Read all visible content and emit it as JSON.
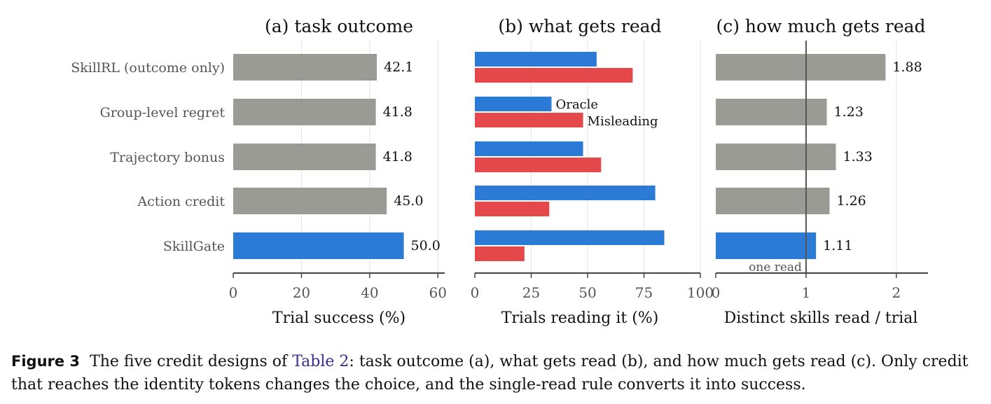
{
  "colors": {
    "gray": "#9b9b96",
    "blue": "#2a7ad6",
    "red": "#e5484b",
    "axis": "#444444",
    "grid": "#e3e3e3"
  },
  "chart_data": [
    {
      "type": "bar",
      "orientation": "horizontal",
      "title": "(a) task outcome",
      "xlabel": "Trial success (%)",
      "xlim": [
        0,
        62
      ],
      "xticks": [
        0,
        20,
        40,
        60
      ],
      "categories": [
        "SkillRL (outcome only)",
        "Group-level regret",
        "Trajectory bonus",
        "Action credit",
        "SkillGate"
      ],
      "values": [
        42.1,
        41.8,
        41.8,
        45.0,
        50.0
      ],
      "value_labels": [
        "42.1",
        "41.8",
        "41.8",
        "45.0",
        "50.0"
      ],
      "bar_colors": [
        "gray",
        "gray",
        "gray",
        "gray",
        "blue"
      ],
      "grid": true
    },
    {
      "type": "bar",
      "orientation": "horizontal",
      "title": "(b) what gets read",
      "xlabel": "Trials reading it (%)",
      "xlim": [
        0,
        100
      ],
      "xticks": [
        0,
        25,
        50,
        75,
        100
      ],
      "categories": [
        "SkillRL (outcome only)",
        "Group-level regret",
        "Trajectory bonus",
        "Action credit",
        "SkillGate"
      ],
      "series": [
        {
          "name": "Oracle",
          "color": "blue",
          "values": [
            54,
            34,
            48,
            80,
            84
          ]
        },
        {
          "name": "Misleading",
          "color": "red",
          "values": [
            70,
            48,
            56,
            33,
            22
          ]
        }
      ],
      "grid": true
    },
    {
      "type": "bar",
      "orientation": "horizontal",
      "title": "(c) how much gets read",
      "xlabel": "Distinct skills read / trial",
      "xlim": [
        0,
        2.35
      ],
      "xticks": [
        0,
        1,
        2
      ],
      "categories": [
        "SkillRL (outcome only)",
        "Group-level regret",
        "Trajectory bonus",
        "Action credit",
        "SkillGate"
      ],
      "values": [
        1.88,
        1.23,
        1.33,
        1.26,
        1.11
      ],
      "value_labels": [
        "1.88",
        "1.23",
        "1.33",
        "1.26",
        "1.11"
      ],
      "bar_colors": [
        "gray",
        "gray",
        "gray",
        "gray",
        "blue"
      ],
      "reference_line": {
        "x": 1,
        "label": "one read"
      },
      "grid": true
    }
  ],
  "caption": {
    "label": "Figure 3",
    "text_before": "The five credit designs of ",
    "link": "Table 2",
    "text_after": ": task outcome (a), what gets read (b), and how much gets read (c). Only credit that reaches the identity tokens changes the choice, and the single-read rule converts it into success."
  }
}
